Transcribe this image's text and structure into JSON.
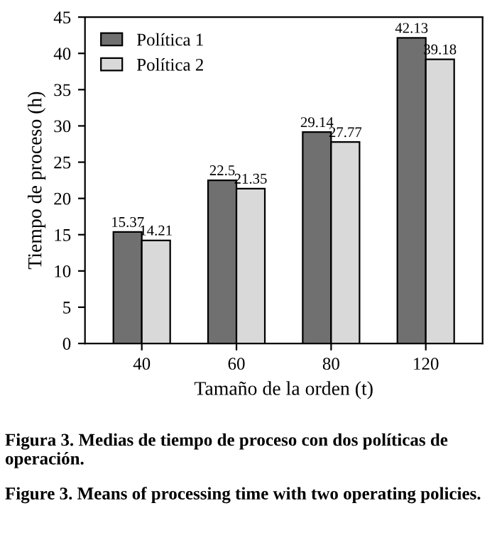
{
  "chart_data": {
    "type": "bar",
    "xlabel": "Tamaño de la orden (t)",
    "ylabel": "Tiempo de proceso (h)",
    "categories": [
      "40",
      "60",
      "80",
      "120"
    ],
    "series": [
      {
        "name": "Política 1",
        "color": "#707070",
        "values": [
          15.37,
          22.5,
          29.14,
          42.13
        ]
      },
      {
        "name": "Política 2",
        "color": "#d9d9d9",
        "values": [
          14.21,
          21.35,
          27.77,
          39.18
        ]
      }
    ],
    "ylim": [
      0,
      45
    ],
    "yticks": [
      0,
      5,
      10,
      15,
      20,
      25,
      30,
      35,
      40,
      45
    ],
    "data_labels": true,
    "grid": false,
    "legend": "top left",
    "annotations": [
      "Figura 3. Medias de tiempo de proceso con dos políticas de operación.",
      "Figure 3. Means of processing time with two operating policies."
    ]
  }
}
